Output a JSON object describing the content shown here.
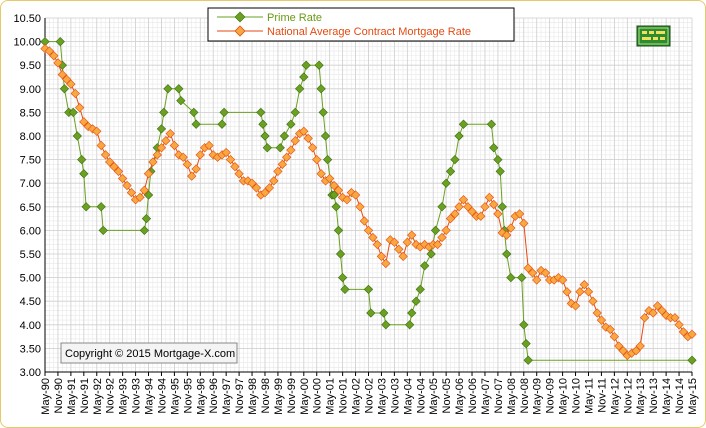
{
  "chart_data": {
    "type": "line",
    "title": "",
    "xlabel": "",
    "ylabel": "",
    "ylim": [
      3.0,
      10.5
    ],
    "yticks": [
      "3.00",
      "3.50",
      "4.00",
      "4.50",
      "5.00",
      "5.50",
      "6.00",
      "6.50",
      "7.00",
      "7.50",
      "8.00",
      "8.50",
      "9.00",
      "9.50",
      "10.00",
      "10.50"
    ],
    "x_tick_labels": [
      "May-90",
      "Nov-90",
      "May-91",
      "Nov-91",
      "May-92",
      "Nov-92",
      "May-93",
      "Nov-93",
      "May-94",
      "Nov-94",
      "May-95",
      "Nov-95",
      "May-96",
      "Nov-96",
      "May-97",
      "Nov-97",
      "May-98",
      "Nov-98",
      "May-99",
      "Nov-99",
      "May-00",
      "Nov-00",
      "May-01",
      "Nov-01",
      "May-02",
      "Nov-02",
      "May-03",
      "Nov-03",
      "May-04",
      "Nov-04",
      "May-05",
      "Nov-05",
      "May-06",
      "Nov-06",
      "May-07",
      "Nov-07",
      "May-08",
      "Nov-08",
      "May-09",
      "Nov-09",
      "May-10",
      "Nov-10",
      "May-11",
      "Nov-11",
      "May-12",
      "Nov-12",
      "May-13",
      "Nov-13",
      "May-14",
      "Nov-14",
      "May-15"
    ],
    "grid": true,
    "legend_position": "top-center",
    "x_unit_note": "x values are years (decimal)",
    "series": [
      {
        "name": "Prime Rate",
        "color": "#6aa120",
        "marker": "diamond",
        "points": [
          [
            1990.33,
            10.0
          ],
          [
            1990.92,
            10.0
          ],
          [
            1991.0,
            9.5
          ],
          [
            1991.08,
            9.0
          ],
          [
            1991.25,
            8.5
          ],
          [
            1991.42,
            8.5
          ],
          [
            1991.58,
            8.0
          ],
          [
            1991.75,
            7.5
          ],
          [
            1991.83,
            7.2
          ],
          [
            1991.92,
            6.5
          ],
          [
            1992.5,
            6.5
          ],
          [
            1992.58,
            6.0
          ],
          [
            1994.17,
            6.0
          ],
          [
            1994.25,
            6.25
          ],
          [
            1994.33,
            6.75
          ],
          [
            1994.42,
            7.25
          ],
          [
            1994.67,
            7.75
          ],
          [
            1994.83,
            8.15
          ],
          [
            1994.92,
            8.5
          ],
          [
            1995.08,
            9.0
          ],
          [
            1995.5,
            9.0
          ],
          [
            1995.58,
            8.75
          ],
          [
            1996.08,
            8.5
          ],
          [
            1996.17,
            8.25
          ],
          [
            1997.17,
            8.25
          ],
          [
            1997.25,
            8.5
          ],
          [
            1998.67,
            8.5
          ],
          [
            1998.75,
            8.25
          ],
          [
            1998.83,
            8.0
          ],
          [
            1998.92,
            7.75
          ],
          [
            1999.42,
            7.75
          ],
          [
            1999.58,
            8.0
          ],
          [
            1999.83,
            8.25
          ],
          [
            2000.0,
            8.5
          ],
          [
            2000.17,
            9.0
          ],
          [
            2000.33,
            9.25
          ],
          [
            2000.42,
            9.5
          ],
          [
            2000.92,
            9.5
          ],
          [
            2001.0,
            9.0
          ],
          [
            2001.08,
            8.5
          ],
          [
            2001.17,
            8.0
          ],
          [
            2001.25,
            7.5
          ],
          [
            2001.42,
            6.75
          ],
          [
            2001.5,
            6.75
          ],
          [
            2001.58,
            6.5
          ],
          [
            2001.67,
            6.0
          ],
          [
            2001.75,
            5.5
          ],
          [
            2001.83,
            5.0
          ],
          [
            2001.92,
            4.75
          ],
          [
            2002.83,
            4.75
          ],
          [
            2002.92,
            4.25
          ],
          [
            2003.42,
            4.25
          ],
          [
            2003.5,
            4.0
          ],
          [
            2004.42,
            4.0
          ],
          [
            2004.5,
            4.25
          ],
          [
            2004.67,
            4.5
          ],
          [
            2004.83,
            4.75
          ],
          [
            2005.0,
            5.25
          ],
          [
            2005.25,
            5.5
          ],
          [
            2005.42,
            6.0
          ],
          [
            2005.67,
            6.5
          ],
          [
            2005.83,
            7.0
          ],
          [
            2006.0,
            7.25
          ],
          [
            2006.17,
            7.5
          ],
          [
            2006.33,
            8.0
          ],
          [
            2006.5,
            8.25
          ],
          [
            2007.58,
            8.25
          ],
          [
            2007.67,
            7.75
          ],
          [
            2007.83,
            7.5
          ],
          [
            2007.92,
            7.25
          ],
          [
            2008.0,
            6.5
          ],
          [
            2008.08,
            6.0
          ],
          [
            2008.17,
            5.5
          ],
          [
            2008.33,
            5.0
          ],
          [
            2008.75,
            5.0
          ],
          [
            2008.83,
            4.0
          ],
          [
            2008.92,
            3.6
          ],
          [
            2009.0,
            3.25
          ],
          [
            2015.33,
            3.25
          ]
        ]
      },
      {
        "name": "National Average Contract Mortgage Rate",
        "color": "#e54a10",
        "marker": "diamond",
        "marker_fill": "#f8a840",
        "points": [
          [
            1990.33,
            9.85
          ],
          [
            1990.5,
            9.8
          ],
          [
            1990.67,
            9.7
          ],
          [
            1990.83,
            9.55
          ],
          [
            1991.0,
            9.3
          ],
          [
            1991.17,
            9.2
          ],
          [
            1991.33,
            9.1
          ],
          [
            1991.5,
            8.9
          ],
          [
            1991.67,
            8.6
          ],
          [
            1991.83,
            8.3
          ],
          [
            1992.0,
            8.2
          ],
          [
            1992.17,
            8.15
          ],
          [
            1992.33,
            8.1
          ],
          [
            1992.5,
            7.8
          ],
          [
            1992.67,
            7.6
          ],
          [
            1992.83,
            7.45
          ],
          [
            1993.0,
            7.35
          ],
          [
            1993.17,
            7.25
          ],
          [
            1993.33,
            7.1
          ],
          [
            1993.5,
            6.95
          ],
          [
            1993.67,
            6.8
          ],
          [
            1993.83,
            6.65
          ],
          [
            1994.0,
            6.7
          ],
          [
            1994.17,
            6.85
          ],
          [
            1994.33,
            7.2
          ],
          [
            1994.5,
            7.45
          ],
          [
            1994.67,
            7.6
          ],
          [
            1994.83,
            7.75
          ],
          [
            1995.0,
            7.9
          ],
          [
            1995.17,
            8.05
          ],
          [
            1995.33,
            7.8
          ],
          [
            1995.5,
            7.6
          ],
          [
            1995.67,
            7.55
          ],
          [
            1995.83,
            7.4
          ],
          [
            1996.0,
            7.15
          ],
          [
            1996.17,
            7.3
          ],
          [
            1996.33,
            7.6
          ],
          [
            1996.5,
            7.75
          ],
          [
            1996.67,
            7.8
          ],
          [
            1996.83,
            7.6
          ],
          [
            1997.0,
            7.55
          ],
          [
            1997.17,
            7.6
          ],
          [
            1997.33,
            7.65
          ],
          [
            1997.5,
            7.5
          ],
          [
            1997.67,
            7.35
          ],
          [
            1997.83,
            7.2
          ],
          [
            1998.0,
            7.05
          ],
          [
            1998.17,
            7.05
          ],
          [
            1998.33,
            7.0
          ],
          [
            1998.5,
            6.9
          ],
          [
            1998.67,
            6.75
          ],
          [
            1998.83,
            6.8
          ],
          [
            1999.0,
            6.9
          ],
          [
            1999.17,
            7.05
          ],
          [
            1999.33,
            7.25
          ],
          [
            1999.5,
            7.4
          ],
          [
            1999.67,
            7.55
          ],
          [
            1999.83,
            7.7
          ],
          [
            2000.0,
            7.9
          ],
          [
            2000.17,
            8.05
          ],
          [
            2000.33,
            8.1
          ],
          [
            2000.5,
            7.95
          ],
          [
            2000.67,
            7.75
          ],
          [
            2000.83,
            7.5
          ],
          [
            2001.0,
            7.2
          ],
          [
            2001.17,
            7.05
          ],
          [
            2001.33,
            7.1
          ],
          [
            2001.5,
            6.95
          ],
          [
            2001.67,
            6.85
          ],
          [
            2001.83,
            6.7
          ],
          [
            2002.0,
            6.65
          ],
          [
            2002.17,
            6.8
          ],
          [
            2002.33,
            6.75
          ],
          [
            2002.5,
            6.5
          ],
          [
            2002.67,
            6.2
          ],
          [
            2002.83,
            6.0
          ],
          [
            2003.0,
            5.85
          ],
          [
            2003.17,
            5.7
          ],
          [
            2003.33,
            5.45
          ],
          [
            2003.5,
            5.3
          ],
          [
            2003.67,
            5.8
          ],
          [
            2003.83,
            5.75
          ],
          [
            2004.0,
            5.6
          ],
          [
            2004.17,
            5.45
          ],
          [
            2004.33,
            5.75
          ],
          [
            2004.5,
            5.9
          ],
          [
            2004.67,
            5.7
          ],
          [
            2004.83,
            5.65
          ],
          [
            2005.0,
            5.7
          ],
          [
            2005.17,
            5.65
          ],
          [
            2005.33,
            5.7
          ],
          [
            2005.5,
            5.7
          ],
          [
            2005.67,
            5.85
          ],
          [
            2005.83,
            6.0
          ],
          [
            2006.0,
            6.25
          ],
          [
            2006.17,
            6.35
          ],
          [
            2006.33,
            6.5
          ],
          [
            2006.5,
            6.65
          ],
          [
            2006.67,
            6.5
          ],
          [
            2006.83,
            6.4
          ],
          [
            2007.0,
            6.3
          ],
          [
            2007.17,
            6.3
          ],
          [
            2007.33,
            6.5
          ],
          [
            2007.5,
            6.7
          ],
          [
            2007.67,
            6.55
          ],
          [
            2007.83,
            6.35
          ],
          [
            2008.0,
            5.95
          ],
          [
            2008.17,
            5.9
          ],
          [
            2008.33,
            6.05
          ],
          [
            2008.5,
            6.3
          ],
          [
            2008.67,
            6.35
          ],
          [
            2008.83,
            6.15
          ],
          [
            2009.0,
            5.2
          ],
          [
            2009.17,
            5.1
          ],
          [
            2009.33,
            4.95
          ],
          [
            2009.5,
            5.15
          ],
          [
            2009.67,
            5.1
          ],
          [
            2009.83,
            4.95
          ],
          [
            2010.0,
            4.95
          ],
          [
            2010.17,
            5.0
          ],
          [
            2010.33,
            4.95
          ],
          [
            2010.5,
            4.7
          ],
          [
            2010.67,
            4.45
          ],
          [
            2010.83,
            4.4
          ],
          [
            2011.0,
            4.7
          ],
          [
            2011.17,
            4.85
          ],
          [
            2011.33,
            4.7
          ],
          [
            2011.5,
            4.5
          ],
          [
            2011.67,
            4.25
          ],
          [
            2011.83,
            4.1
          ],
          [
            2012.0,
            3.95
          ],
          [
            2012.17,
            3.9
          ],
          [
            2012.33,
            3.75
          ],
          [
            2012.5,
            3.55
          ],
          [
            2012.67,
            3.45
          ],
          [
            2012.83,
            3.35
          ],
          [
            2013.0,
            3.4
          ],
          [
            2013.17,
            3.45
          ],
          [
            2013.33,
            3.55
          ],
          [
            2013.5,
            4.15
          ],
          [
            2013.67,
            4.3
          ],
          [
            2013.83,
            4.25
          ],
          [
            2014.0,
            4.4
          ],
          [
            2014.17,
            4.3
          ],
          [
            2014.33,
            4.2
          ],
          [
            2014.5,
            4.15
          ],
          [
            2014.67,
            4.15
          ],
          [
            2014.83,
            4.0
          ],
          [
            2015.0,
            3.85
          ],
          [
            2015.17,
            3.75
          ],
          [
            2015.33,
            3.8
          ]
        ]
      }
    ]
  },
  "legend": {
    "items": [
      "Prime Rate",
      "National Average Contract Mortgage Rate"
    ]
  },
  "copyright": "Copyright © 2015 Mortgage-X.com",
  "logo_icon": "mortgage-x-logo-icon"
}
